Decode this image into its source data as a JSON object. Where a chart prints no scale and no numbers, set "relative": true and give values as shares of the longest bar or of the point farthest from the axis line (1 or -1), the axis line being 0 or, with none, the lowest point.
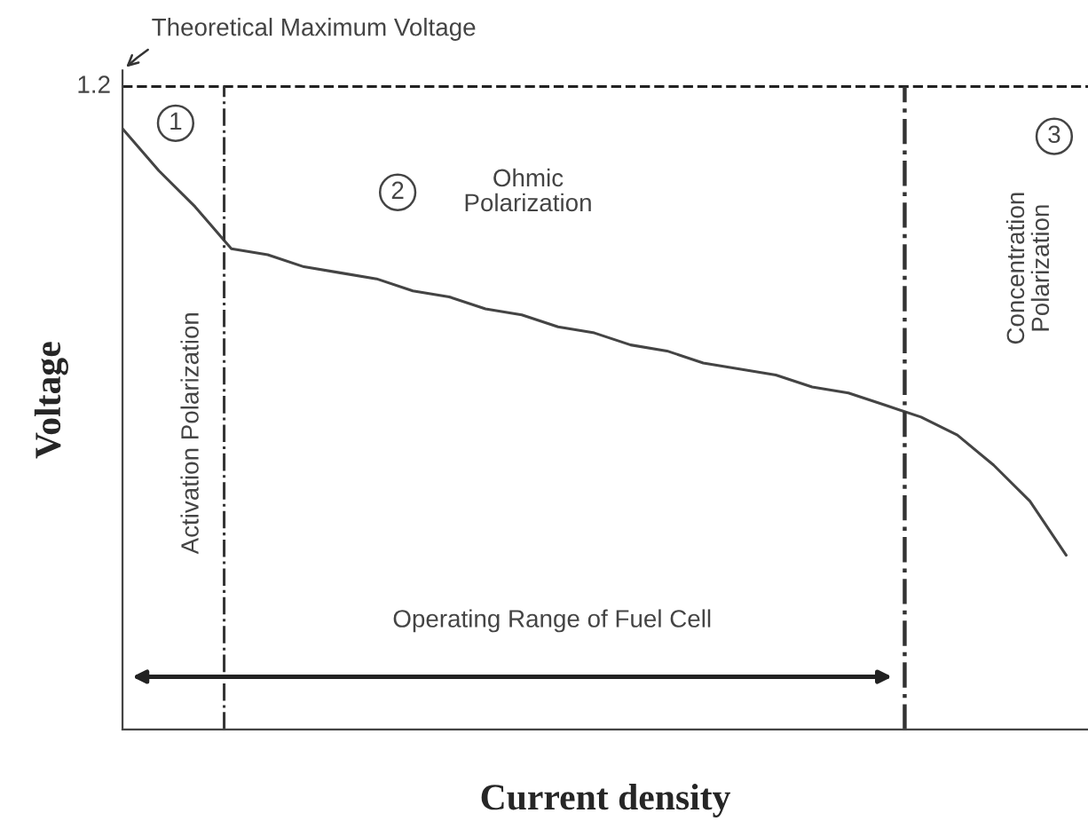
{
  "chart_data": {
    "type": "line",
    "relative": true,
    "xlabel": "Current density",
    "ylabel": "Voltage",
    "categories": [
      null,
      null,
      null,
      null,
      null,
      null,
      null,
      null,
      null,
      null,
      null,
      null,
      null,
      null,
      null,
      null,
      null,
      null,
      null,
      null,
      null,
      null,
      null,
      null,
      null,
      null,
      null
    ],
    "series": [
      {
        "color": "#444444",
        "values": [
          1.0,
          0.93,
          0.87,
          0.8,
          0.79,
          0.77,
          0.76,
          0.75,
          0.73,
          0.72,
          0.7,
          0.69,
          0.67,
          0.66,
          0.64,
          0.63,
          0.61,
          0.6,
          0.59,
          0.57,
          0.56,
          0.54,
          0.52,
          0.49,
          0.44,
          0.38,
          0.29
        ]
      }
    ],
    "ref_lines": [
      {
        "axis": "y",
        "value": 1.07,
        "line_style": "dashed",
        "color": "#222222"
      }
    ],
    "annotations": [
      "1.2",
      "Theoretical Maximum Voltage",
      "1",
      "2",
      "Ohmic\nPolarization",
      "3",
      "Activation Polarization",
      "Concentration\nPolarization",
      "Operating Range of Fuel Cell"
    ],
    "marker": "none",
    "line_style": "solid"
  }
}
